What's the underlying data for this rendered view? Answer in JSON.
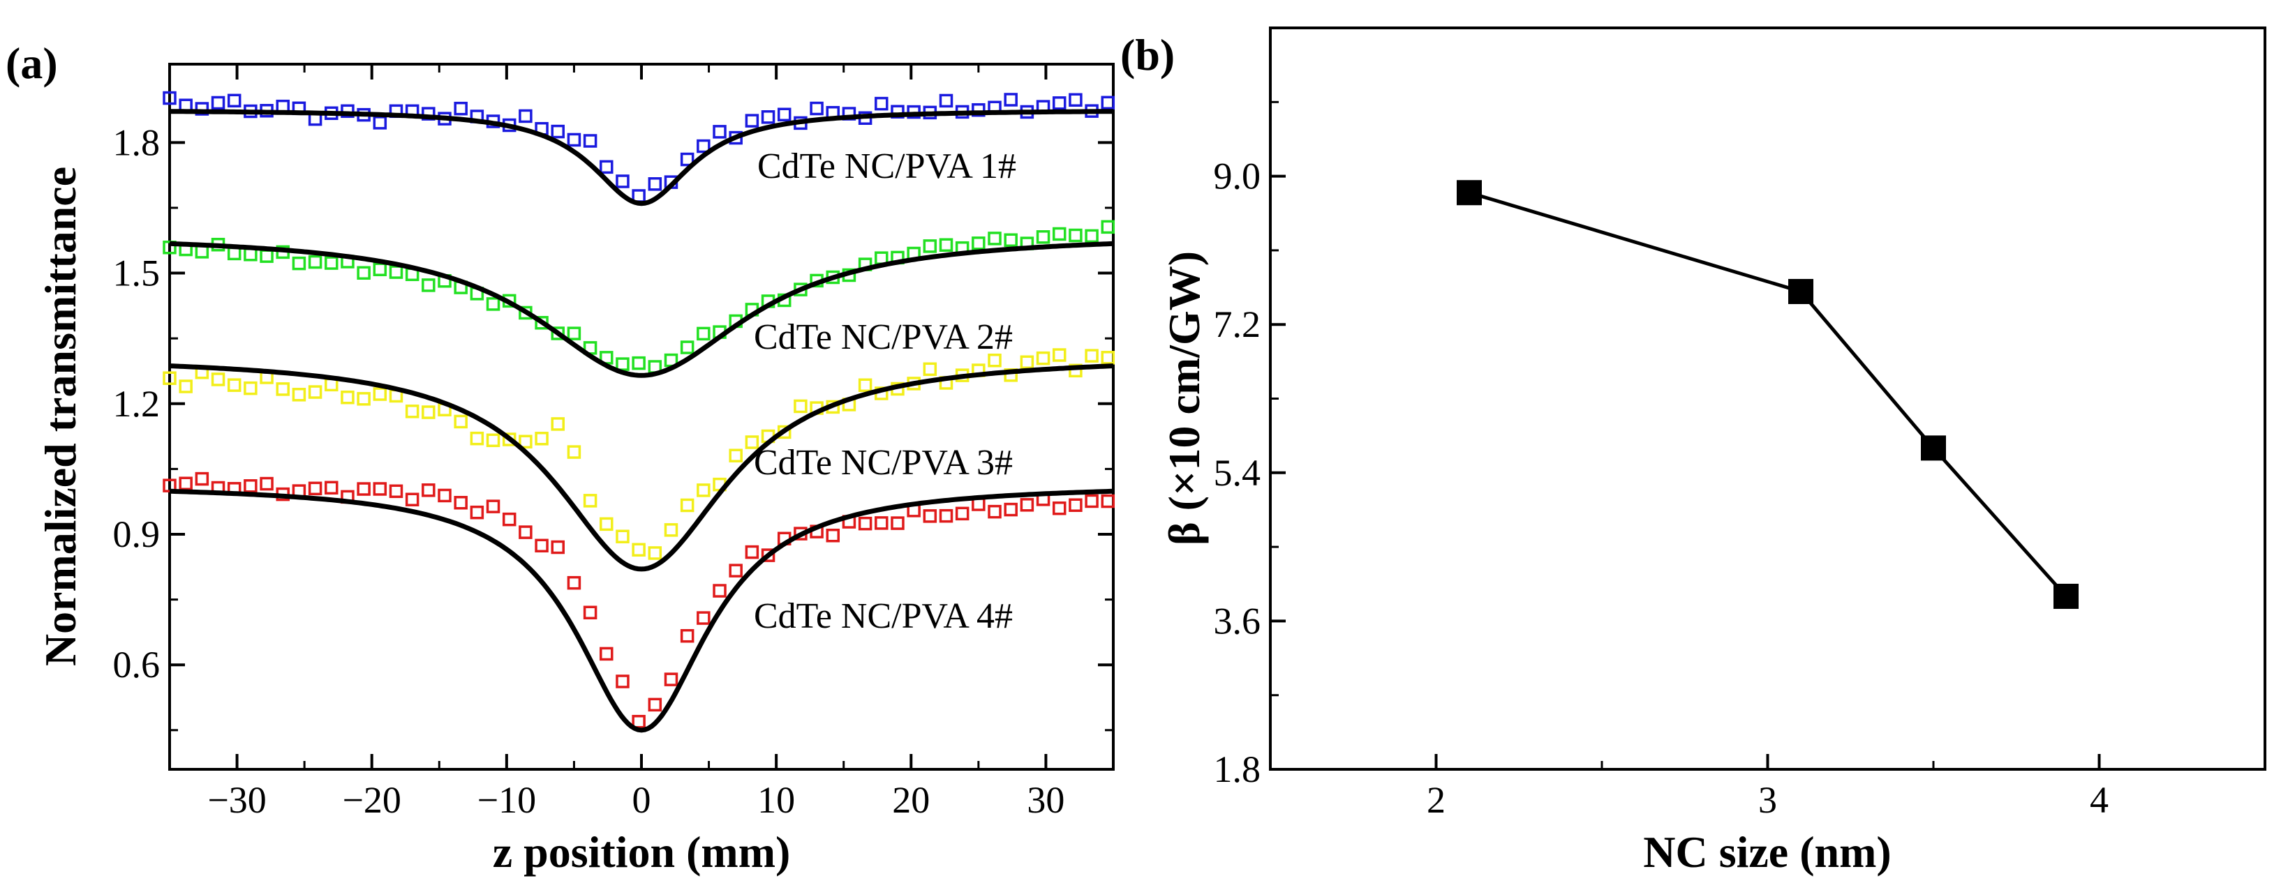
{
  "chart_data": [
    {
      "panel_label": "(a)",
      "type": "line",
      "xlabel": "z position (mm)",
      "ylabel": "Normalized transmittance",
      "xlim": [
        -35,
        35
      ],
      "ylim": [
        0.36,
        1.98
      ],
      "xticks": [
        -30,
        -20,
        -10,
        0,
        10,
        20,
        30
      ],
      "xtick_labels": [
        "−30",
        "−20",
        "−10",
        "0",
        "10",
        "20",
        "30"
      ],
      "yticks": [
        0.6,
        0.9,
        1.2,
        1.5,
        1.8
      ],
      "ytick_labels": [
        "0.6",
        "0.9",
        "1.2",
        "1.5",
        "1.8"
      ],
      "grid": false,
      "series": [
        {
          "name": "CdTe NC/PVA 1#",
          "color": "#1a1adf",
          "marker": "open-square",
          "fit": {
            "baseline": 1.875,
            "depth": 0.215,
            "width": 4.5
          },
          "noise": 0.012,
          "points": [
            [
              -35,
              1.89
            ],
            [
              -30,
              1.885
            ],
            [
              -25,
              1.87
            ],
            [
              -20,
              1.86
            ],
            [
              -15,
              1.87
            ],
            [
              -10,
              1.85
            ],
            [
              -6,
              1.83
            ],
            [
              -3,
              1.77
            ],
            [
              -1,
              1.7
            ],
            [
              0,
              1.67
            ],
            [
              1,
              1.69
            ],
            [
              3,
              1.75
            ],
            [
              6,
              1.82
            ],
            [
              10,
              1.86
            ],
            [
              20,
              1.875
            ],
            [
              30,
              1.885
            ],
            [
              35,
              1.89
            ]
          ]
        },
        {
          "name": "CdTe NC/PVA 2#",
          "color": "#22e022",
          "marker": "open-square",
          "fit": {
            "baseline": 1.59,
            "depth": 0.325,
            "width": 9.5
          },
          "noise": 0.008,
          "points": [
            [
              -35,
              1.56
            ],
            [
              -30,
              1.55
            ],
            [
              -25,
              1.53
            ],
            [
              -20,
              1.51
            ],
            [
              -15,
              1.48
            ],
            [
              -10,
              1.43
            ],
            [
              -5,
              1.35
            ],
            [
              -2,
              1.3
            ],
            [
              0,
              1.28
            ],
            [
              2,
              1.3
            ],
            [
              5,
              1.36
            ],
            [
              10,
              1.44
            ],
            [
              15,
              1.5
            ],
            [
              20,
              1.55
            ],
            [
              25,
              1.57
            ],
            [
              30,
              1.58
            ],
            [
              35,
              1.6
            ]
          ]
        },
        {
          "name": "CdTe NC/PVA 3#",
          "color": "#f2ee1a",
          "marker": "open-square",
          "fit": {
            "baseline": 1.31,
            "depth": 0.49,
            "width": 7.8
          },
          "noise": 0.015,
          "points": [
            [
              -35,
              1.26
            ],
            [
              -30,
              1.25
            ],
            [
              -25,
              1.23
            ],
            [
              -20,
              1.22
            ],
            [
              -15,
              1.18
            ],
            [
              -10,
              1.1
            ],
            [
              -6,
              1.15
            ],
            [
              -4,
              1.0
            ],
            [
              -2,
              0.9
            ],
            [
              0,
              0.85
            ],
            [
              2,
              0.9
            ],
            [
              4,
              0.98
            ],
            [
              8,
              1.1
            ],
            [
              12,
              1.18
            ],
            [
              20,
              1.25
            ],
            [
              30,
              1.3
            ],
            [
              35,
              1.3
            ]
          ]
        },
        {
          "name": "CdTe NC/PVA 4#",
          "color": "#e01a1a",
          "marker": "open-square",
          "fit": {
            "baseline": 1.015,
            "depth": 0.565,
            "width": 6.0
          },
          "noise": 0.01,
          "points": [
            [
              -35,
              1.02
            ],
            [
              -30,
              1.01
            ],
            [
              -25,
              1.0
            ],
            [
              -20,
              1.0
            ],
            [
              -15,
              0.99
            ],
            [
              -10,
              0.94
            ],
            [
              -6,
              0.85
            ],
            [
              -4,
              0.74
            ],
            [
              -2,
              0.58
            ],
            [
              0,
              0.47
            ],
            [
              2,
              0.55
            ],
            [
              4,
              0.7
            ],
            [
              8,
              0.85
            ],
            [
              12,
              0.9
            ],
            [
              20,
              0.94
            ],
            [
              30,
              0.97
            ],
            [
              35,
              0.97
            ]
          ]
        }
      ]
    },
    {
      "panel_label": "(b)",
      "type": "line",
      "xlabel": "NC size (nm)",
      "ylabel": "β (×10 cm/GW)",
      "xlim": [
        1.5,
        4.5
      ],
      "ylim": [
        1.8,
        10.8
      ],
      "xticks": [
        2,
        3,
        4
      ],
      "xtick_labels": [
        "2",
        "3",
        "4"
      ],
      "yticks": [
        1.8,
        3.6,
        5.4,
        7.2,
        9.0
      ],
      "ytick_labels": [
        "1.8",
        "3.6",
        "5.4",
        "7.2",
        "9.0"
      ],
      "grid": false,
      "series": [
        {
          "name": "beta",
          "color": "#000000",
          "marker": "filled-square",
          "x": [
            2.1,
            3.1,
            3.5,
            3.9
          ],
          "y": [
            8.8,
            7.6,
            5.7,
            3.9
          ]
        }
      ]
    }
  ]
}
